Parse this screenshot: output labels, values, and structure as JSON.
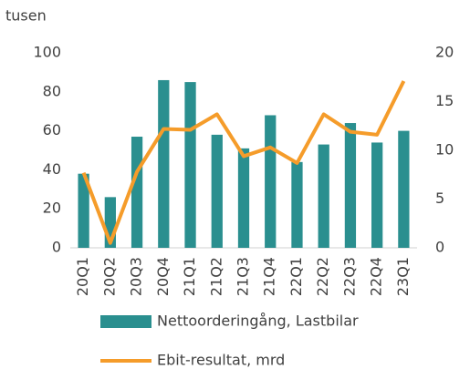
{
  "chart_data": {
    "type": "bar_line",
    "y_label": "tusen",
    "categories": [
      "20Q1",
      "20Q2",
      "20Q3",
      "20Q4",
      "21Q1",
      "21Q2",
      "21Q3",
      "21Q4",
      "22Q1",
      "22Q2",
      "22Q3",
      "22Q4",
      "23Q1"
    ],
    "series": [
      {
        "name": "Nettoorderingång, Lastbilar",
        "type": "bar",
        "color": "#2a8f8f",
        "values": [
          38,
          26,
          57,
          86,
          85,
          58,
          51,
          68,
          44,
          53,
          64,
          54,
          60
        ]
      },
      {
        "name": "Ebit-resultat, mrd",
        "type": "line",
        "axis": "y2",
        "color": "#f59c2a",
        "values": [
          7.7,
          0.5,
          7.8,
          12.2,
          12.1,
          13.7,
          9.4,
          10.3,
          8.7,
          13.7,
          11.9,
          11.6,
          17.1
        ]
      }
    ],
    "ylim": [
      0,
      100
    ],
    "yticks": [
      0,
      20,
      40,
      60,
      80,
      100
    ],
    "y2lim": [
      0,
      20
    ],
    "y2ticks": [
      0,
      5,
      10,
      15,
      20
    ],
    "grid": false
  }
}
